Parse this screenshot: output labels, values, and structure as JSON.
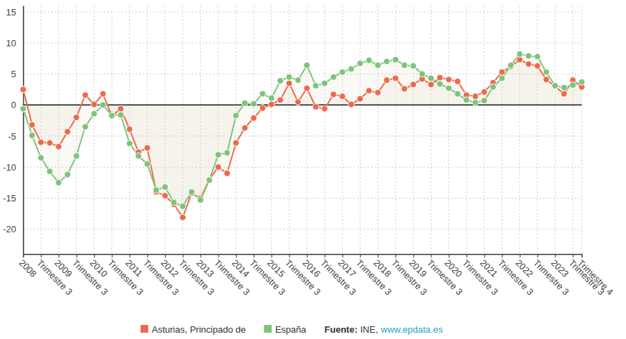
{
  "chart_data": {
    "type": "line",
    "categories": [
      "2008",
      null,
      "Trimestre 3",
      null,
      "2009",
      null,
      "Trimestre 3",
      null,
      "2010",
      null,
      "Trimestre 3",
      null,
      "2011",
      null,
      "Trimestre 3",
      null,
      "2012",
      null,
      "Trimestre 3",
      null,
      "2013",
      null,
      "Trimestre 3",
      null,
      "2014",
      null,
      "Trimestre 3",
      null,
      "2015",
      null,
      "Trimestre 3",
      null,
      "2016",
      null,
      "Trimestre 3",
      null,
      "2017",
      null,
      "Trimestre 3",
      null,
      "2018",
      null,
      "Trimestre 3",
      null,
      "2019",
      null,
      "Trimestre 3",
      null,
      "2020",
      null,
      "Trimestre 3",
      null,
      "2021",
      null,
      "Trimestre 3",
      null,
      "2022",
      null,
      "Trimestre 3",
      null,
      "2023",
      null,
      "Trimestre 3",
      "Trimestre 4"
    ],
    "series": [
      {
        "name": "Asturias, Principado de",
        "color": "#ec6a4c",
        "marker": "circle",
        "values": [
          2.5,
          -3.2,
          -6.0,
          -6.1,
          -6.7,
          -4.3,
          -2.0,
          1.6,
          0.1,
          1.8,
          -1.8,
          -0.6,
          -3.9,
          -7.6,
          -6.9,
          -14.0,
          -14.6,
          -16.0,
          -18.1,
          -14.2,
          -15.0,
          -12.0,
          -10.0,
          -11.0,
          -6.1,
          -3.7,
          -2.1,
          -0.5,
          0.1,
          0.8,
          3.5,
          0.5,
          2.7,
          -0.3,
          -0.6,
          1.7,
          1.4,
          0.1,
          1.0,
          2.3,
          2.0,
          4.0,
          4.3,
          2.6,
          3.3,
          4.2,
          3.3,
          4.4,
          4.1,
          3.8,
          1.6,
          1.4,
          2.1,
          3.6,
          5.3,
          6.2,
          7.3,
          6.6,
          6.3,
          4.1,
          3.0,
          1.8,
          4.0,
          2.9
        ]
      },
      {
        "name": "España",
        "color": "#7dc47b",
        "marker": "circle",
        "values": [
          -0.6,
          -4.9,
          -8.5,
          -10.7,
          -12.5,
          -11.2,
          -8.2,
          -3.5,
          -1.4,
          0.0,
          -1.7,
          -1.6,
          -6.2,
          -8.2,
          -9.5,
          -13.7,
          -13.2,
          -15.7,
          -16.3,
          -14.0,
          -15.3,
          -12.1,
          -8.0,
          -7.7,
          -1.7,
          0.3,
          0.2,
          1.8,
          1.1,
          3.9,
          4.5,
          4.0,
          6.4,
          3.1,
          3.5,
          4.5,
          5.3,
          5.8,
          6.7,
          7.2,
          6.4,
          7.0,
          7.3,
          6.4,
          6.3,
          5.0,
          4.3,
          3.4,
          2.7,
          1.8,
          0.8,
          0.4,
          0.7,
          2.9,
          4.3,
          6.4,
          8.2,
          7.9,
          7.8,
          5.3,
          3.1,
          2.8,
          3.2,
          3.7
        ]
      }
    ],
    "ylim": [
      -24,
      16
    ],
    "yticks": [
      -20,
      -15,
      -10,
      -5,
      0,
      5,
      10,
      15
    ],
    "grid": true,
    "legend": "bottom",
    "source_label": "Fuente:",
    "source_text": "INE,",
    "source_link": "www.epdata.es"
  }
}
